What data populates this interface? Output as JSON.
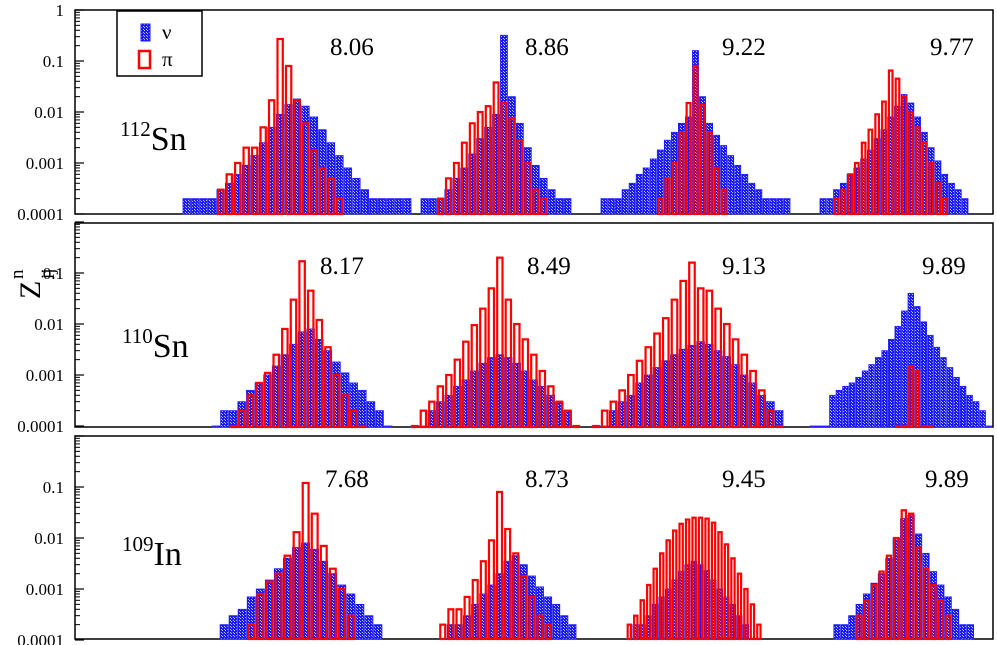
{
  "chart_data": {
    "type": "bar",
    "title": "",
    "xlabel": "",
    "ylabel": {
      "base": "Z",
      "superscript": "n",
      "subscript": "ij"
    },
    "yscale": "log",
    "legend": {
      "placement": "top-left",
      "entries": [
        {
          "name": "ν",
          "color": "#1a1aff"
        },
        {
          "name": "π",
          "color": "#ff0000"
        }
      ]
    },
    "panels": [
      {
        "nucleus": {
          "mass": "112",
          "symbol": "Sn"
        },
        "ylim": [
          0.0001,
          1
        ],
        "ytick_labels": [
          "1",
          "0.1",
          "0.01",
          "0.001",
          "0.0001"
        ],
        "groups": [
          {
            "label": "8.06",
            "nu": [
              0.0002,
              0.0002,
              0.0002,
              0.0002,
              0.0003,
              0.0004,
              0.0006,
              0.0009,
              0.0014,
              0.0025,
              0.005,
              0.009,
              0.014,
              0.018,
              0.013,
              0.008,
              0.0045,
              0.0025,
              0.0014,
              0.0008,
              0.0005,
              0.0003,
              0.0002,
              0.0002,
              0.0002,
              0.0002,
              0.0002
            ],
            "pi": [
              0.0001,
              0.0001,
              0.0001,
              0.0001,
              0.0003,
              0.0006,
              0.001,
              0.002,
              0.002,
              0.005,
              0.017,
              0.27,
              0.08,
              0.017,
              0.006,
              0.0018,
              0.0008,
              0.0005,
              0.0002,
              0.0001,
              0.0001,
              0.0001,
              0.0001,
              0.0001,
              0.0001,
              0.0001,
              0.0001
            ]
          },
          {
            "label": "8.86",
            "nu": [
              0.0002,
              0.0002,
              0.0002,
              0.0003,
              0.0005,
              0.0008,
              0.0015,
              0.003,
              0.005,
              0.009,
              0.32,
              0.02,
              0.006,
              0.002,
              0.0009,
              0.0005,
              0.0003,
              0.0002,
              0.0002
            ],
            "pi": [
              0.0001,
              0.0001,
              0.0002,
              0.0005,
              0.001,
              0.0025,
              0.006,
              0.01,
              0.013,
              0.038,
              0.015,
              0.0075,
              0.0028,
              0.001,
              0.0003,
              0.0002,
              0.0001,
              0.0001,
              0.0001
            ]
          },
          {
            "label": "9.22",
            "nu": [
              0.0002,
              0.0002,
              0.0002,
              0.0003,
              0.0004,
              0.0006,
              0.0008,
              0.0012,
              0.0018,
              0.0028,
              0.004,
              0.006,
              0.008,
              0.16,
              0.02,
              0.006,
              0.0035,
              0.0022,
              0.0014,
              0.0009,
              0.0006,
              0.0004,
              0.0003,
              0.0002,
              0.0002,
              0.0002,
              0.0002
            ],
            "pi": [
              0,
              0,
              0,
              0,
              0,
              0,
              0.0001,
              0.0001,
              0.0002,
              0.0005,
              0.001,
              0.004,
              0.015,
              0.08,
              0.014,
              0.004,
              0.0008,
              0.0003,
              0.0001,
              0.0001,
              0,
              0,
              0,
              0,
              0,
              0,
              0
            ]
          },
          {
            "label": "9.77",
            "nu": [
              0.0002,
              0.0002,
              0.0003,
              0.0004,
              0.0006,
              0.0008,
              0.0012,
              0.0018,
              0.003,
              0.0045,
              0.008,
              0.013,
              0.022,
              0.015,
              0.008,
              0.004,
              0.002,
              0.0011,
              0.0006,
              0.0004,
              0.0003,
              0.0002
            ],
            "pi": [
              0.0001,
              0.0001,
              0.0002,
              0.0003,
              0.0006,
              0.001,
              0.0025,
              0.0045,
              0.009,
              0.016,
              0.065,
              0.045,
              0.02,
              0.01,
              0.005,
              0.0025,
              0.001,
              0.0004,
              0.0002,
              0.0001,
              0.0001,
              0.0001
            ]
          }
        ]
      },
      {
        "nucleus": {
          "mass": "110",
          "symbol": "Sn"
        },
        "ylim": [
          0.0001,
          1
        ],
        "ytick_labels": [
          "0.1",
          "0.01",
          "0.001",
          "0.0001"
        ],
        "groups": [
          {
            "label": "8.17",
            "nu": [
              0.0001,
              0.0002,
              0.0002,
              0.0003,
              0.0005,
              0.0007,
              0.001,
              0.0015,
              0.0025,
              0.004,
              0.007,
              0.008,
              0.005,
              0.003,
              0.0018,
              0.0011,
              0.0007,
              0.0005,
              0.0003,
              0.0002,
              0.0001
            ],
            "pi": [
              0,
              0,
              0.0001,
              0.0002,
              0.0004,
              0.0007,
              0.0011,
              0.0025,
              0.008,
              0.03,
              0.17,
              0.045,
              0.012,
              0.0035,
              0.001,
              0.0004,
              0.0002,
              0.0001,
              0,
              0,
              0
            ]
          },
          {
            "label": "8.49",
            "nu": [
              0.0001,
              0.0001,
              0.0002,
              0.0003,
              0.0004,
              0.0006,
              0.0008,
              0.0012,
              0.0017,
              0.0022,
              0.0025,
              0.0022,
              0.0017,
              0.0012,
              0.0008,
              0.0006,
              0.0004,
              0.0003,
              0.0002,
              0.0001
            ],
            "pi": [
              0.0001,
              0.0002,
              0.0003,
              0.0006,
              0.001,
              0.002,
              0.0045,
              0.0095,
              0.02,
              0.05,
              0.2,
              0.03,
              0.01,
              0.005,
              0.0025,
              0.0012,
              0.0006,
              0.0003,
              0.0002,
              0.0001
            ]
          },
          {
            "label": "9.13",
            "nu": [
              0.0001,
              0.0001,
              0.0002,
              0.0003,
              0.0004,
              0.0007,
              0.001,
              0.0014,
              0.0019,
              0.0025,
              0.0032,
              0.0038,
              0.0045,
              0.004,
              0.003,
              0.0023,
              0.0016,
              0.001,
              0.0007,
              0.0004,
              0.0003,
              0.0002
            ],
            "pi": [
              0.0001,
              0.0002,
              0.0003,
              0.0005,
              0.001,
              0.0019,
              0.0035,
              0.0065,
              0.013,
              0.03,
              0.07,
              0.16,
              0.05,
              0.045,
              0.02,
              0.01,
              0.005,
              0.0025,
              0.0012,
              0.0005,
              0.0002,
              0.0001
            ]
          },
          {
            "label": "9.89",
            "nu": [
              0.0001,
              0.0001,
              0.0001,
              0.0004,
              0.0005,
              0.0006,
              0.0007,
              0.0009,
              0.0012,
              0.0016,
              0.0022,
              0.003,
              0.005,
              0.009,
              0.018,
              0.04,
              0.022,
              0.011,
              0.006,
              0.0035,
              0.0022,
              0.0014,
              0.0009,
              0.0006,
              0.0004,
              0.0003,
              0.0002,
              0.0001
            ],
            "pi": [
              0,
              0,
              0,
              0,
              0,
              0,
              0,
              0,
              0,
              0,
              0,
              0,
              0,
              0.0001,
              0.0001,
              0.0015,
              0.0012,
              0.0001,
              0.0001,
              0,
              0,
              0,
              0,
              0,
              0,
              0,
              0,
              0
            ]
          }
        ]
      },
      {
        "nucleus": {
          "mass": "109",
          "symbol": "In"
        },
        "ylim": [
          0.0001,
          1
        ],
        "ytick_labels": [
          "0.1",
          "0.01",
          "0.001",
          "0.0001"
        ],
        "groups": [
          {
            "label": "7.68",
            "nu": [
              0.0001,
              0.0001,
              0.0002,
              0.0003,
              0.0004,
              0.0007,
              0.001,
              0.0015,
              0.0025,
              0.004,
              0.0065,
              0.008,
              0.006,
              0.0035,
              0.002,
              0.0012,
              0.0008,
              0.0005,
              0.0003,
              0.0002,
              0.0001
            ],
            "pi": [
              0,
              0,
              0,
              0,
              0,
              0.0002,
              0.0008,
              0.0014,
              0.002,
              0.0045,
              0.013,
              0.12,
              0.03,
              0.007,
              0.0025,
              0.001,
              0.0003,
              0.0001,
              0,
              0,
              0
            ]
          },
          {
            "label": "8.73",
            "nu": [
              0.0001,
              0.0001,
              0.0002,
              0.0002,
              0.0003,
              0.0005,
              0.0008,
              0.0012,
              0.002,
              0.0035,
              0.0045,
              0.003,
              0.0018,
              0.0011,
              0.0007,
              0.0005,
              0.0003,
              0.0002
            ],
            "pi": [
              0.0001,
              0.0002,
              0.0004,
              0.0004,
              0.0007,
              0.0015,
              0.0035,
              0.009,
              0.08,
              0.015,
              0.005,
              0.0018,
              0.0007,
              0.0003,
              0.0002,
              0.0001,
              0.0001,
              0.0001
            ]
          },
          {
            "label": "9.45",
            "nu": [
              0.0001,
              0.0001,
              0.0002,
              0.0002,
              0.0003,
              0.0005,
              0.0007,
              0.001,
              0.0015,
              0.0022,
              0.003,
              0.0035,
              0.003,
              0.0023,
              0.0015,
              0.001,
              0.0007,
              0.0005,
              0.0003,
              0.0002,
              0.0001,
              0.0001,
              0.0001
            ],
            "pi": [
              0.0001,
              0.0002,
              0.0003,
              0.0006,
              0.0012,
              0.0025,
              0.005,
              0.009,
              0.014,
              0.019,
              0.023,
              0.025,
              0.025,
              0.024,
              0.02,
              0.013,
              0.0075,
              0.004,
              0.002,
              0.001,
              0.0005,
              0.0002,
              0.0001
            ]
          },
          {
            "label": "9.89",
            "nu": [
              0.0001,
              0.0001,
              0.0002,
              0.0002,
              0.0003,
              0.0005,
              0.0008,
              0.0013,
              0.002,
              0.004,
              0.01,
              0.024,
              0.028,
              0.012,
              0.005,
              0.0022,
              0.0012,
              0.0007,
              0.0004,
              0.0002,
              0.0002,
              0.0001
            ],
            "pi": [
              0,
              0,
              0,
              0,
              0,
              0.0003,
              0.0006,
              0.0012,
              0.0022,
              0.0045,
              0.01,
              0.035,
              0.03,
              0.0065,
              0.0025,
              0.0012,
              0.0006,
              0.0003,
              0.0001,
              0,
              0,
              0
            ]
          }
        ]
      }
    ]
  }
}
